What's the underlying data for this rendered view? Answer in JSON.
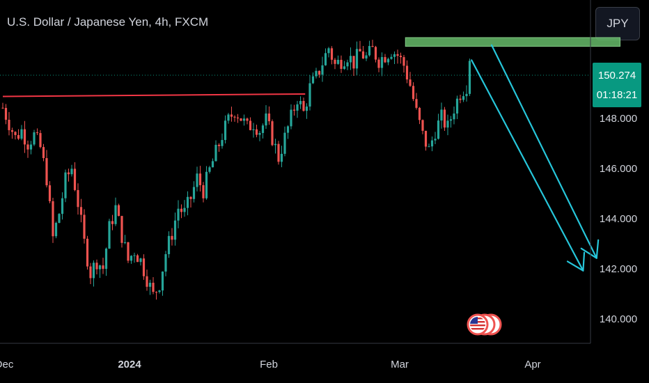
{
  "header": {
    "title": "U.S. Dollar / Japanese Yen, 4h, FXCM"
  },
  "currency_button": {
    "label": "JPY"
  },
  "price_tag": {
    "price": "150.274",
    "countdown": "01:18:21"
  },
  "colors": {
    "up": "#26a69a",
    "down": "#ef5350",
    "resistance": "#f23645",
    "zone": "#66bb6a",
    "arrow": "#26c6da",
    "last_price": "#089981"
  },
  "chart_data": {
    "type": "candlestick",
    "title": "U.S. Dollar / Japanese Yen, 4h, FXCM",
    "y_ticks": [
      "148.000",
      "146.000",
      "144.000",
      "142.000",
      "140.000"
    ],
    "y_tick_values": [
      148,
      146,
      144,
      142,
      140
    ],
    "x_ticks": [
      "Dec",
      "2024",
      "Feb",
      "Mar",
      "Apr"
    ],
    "ylim": [
      139.0,
      152.7
    ],
    "last_price": 150.274,
    "price_path": [
      {
        "t": 0,
        "p": 148.4
      },
      {
        "t": 2,
        "p": 147.8
      },
      {
        "t": 4,
        "p": 147.2
      },
      {
        "t": 6,
        "p": 147.5
      },
      {
        "t": 8,
        "p": 147.0
      },
      {
        "t": 10,
        "p": 147.3
      },
      {
        "t": 12,
        "p": 146.8
      },
      {
        "t": 14,
        "p": 145.6
      },
      {
        "t": 16,
        "p": 143.2
      },
      {
        "t": 18,
        "p": 144.2
      },
      {
        "t": 20,
        "p": 145.5
      },
      {
        "t": 22,
        "p": 146.0
      },
      {
        "t": 24,
        "p": 144.6
      },
      {
        "t": 26,
        "p": 143.0
      },
      {
        "t": 28,
        "p": 141.8
      },
      {
        "t": 30,
        "p": 142.3
      },
      {
        "t": 32,
        "p": 142.0
      },
      {
        "t": 34,
        "p": 143.6
      },
      {
        "t": 36,
        "p": 144.4
      },
      {
        "t": 38,
        "p": 143.3
      },
      {
        "t": 40,
        "p": 142.3
      },
      {
        "t": 42,
        "p": 142.7
      },
      {
        "t": 44,
        "p": 142.3
      },
      {
        "t": 46,
        "p": 141.6
      },
      {
        "t": 48,
        "p": 140.9
      },
      {
        "t": 50,
        "p": 141.4
      },
      {
        "t": 52,
        "p": 142.6
      },
      {
        "t": 54,
        "p": 143.4
      },
      {
        "t": 56,
        "p": 144.4
      },
      {
        "t": 58,
        "p": 144.2
      },
      {
        "t": 60,
        "p": 144.8
      },
      {
        "t": 62,
        "p": 145.6
      },
      {
        "t": 64,
        "p": 145.1
      },
      {
        "t": 66,
        "p": 145.9
      },
      {
        "t": 68,
        "p": 146.6
      },
      {
        "t": 70,
        "p": 147.3
      },
      {
        "t": 72,
        "p": 147.9
      },
      {
        "t": 74,
        "p": 148.3
      },
      {
        "t": 76,
        "p": 148.0
      },
      {
        "t": 78,
        "p": 147.6
      },
      {
        "t": 80,
        "p": 147.8
      },
      {
        "t": 82,
        "p": 147.5
      },
      {
        "t": 84,
        "p": 147.9
      },
      {
        "t": 86,
        "p": 147.2
      },
      {
        "t": 88,
        "p": 146.4
      },
      {
        "t": 90,
        "p": 147.2
      },
      {
        "t": 92,
        "p": 148.0
      },
      {
        "t": 94,
        "p": 148.8
      },
      {
        "t": 96,
        "p": 148.2
      },
      {
        "t": 98,
        "p": 149.2
      },
      {
        "t": 100,
        "p": 149.6
      },
      {
        "t": 102,
        "p": 150.2
      },
      {
        "t": 104,
        "p": 150.8
      },
      {
        "t": 106,
        "p": 150.1
      },
      {
        "t": 108,
        "p": 150.3
      },
      {
        "t": 110,
        "p": 150.5
      },
      {
        "t": 112,
        "p": 150.2
      },
      {
        "t": 114,
        "p": 150.6
      },
      {
        "t": 116,
        "p": 150.4
      },
      {
        "t": 118,
        "p": 150.7
      },
      {
        "t": 120,
        "p": 150.3
      },
      {
        "t": 122,
        "p": 150.5
      },
      {
        "t": 124,
        "p": 150.7
      },
      {
        "t": 126,
        "p": 150.5
      },
      {
        "t": 128,
        "p": 150.1
      },
      {
        "t": 130,
        "p": 149.3
      },
      {
        "t": 132,
        "p": 148.2
      },
      {
        "t": 134,
        "p": 147.3
      },
      {
        "t": 136,
        "p": 146.7
      },
      {
        "t": 138,
        "p": 147.5
      },
      {
        "t": 140,
        "p": 148.0
      },
      {
        "t": 142,
        "p": 147.6
      },
      {
        "t": 144,
        "p": 148.4
      },
      {
        "t": 146,
        "p": 149.0
      },
      {
        "t": 148,
        "p": 149.3
      },
      {
        "t": 149,
        "p": 150.3
      }
    ],
    "drawings": {
      "resistance_line": {
        "t_start": 0,
        "t_end": 96.5,
        "price_start": 148.85,
        "price_end": 148.95
      },
      "supply_zone": {
        "t_start": 128.5,
        "t_end": 197,
        "price_low": 150.85,
        "price_high": 151.2
      },
      "projection_arrow_1": {
        "t_start": 149.6,
        "t_end": 185.2,
        "price_start": 150.3,
        "price_end": 141.9
      },
      "projection_arrow_2": {
        "t_start": 156,
        "t_end": 189.5,
        "price_start": 150.9,
        "price_end": 142.4
      }
    },
    "grid": false
  }
}
